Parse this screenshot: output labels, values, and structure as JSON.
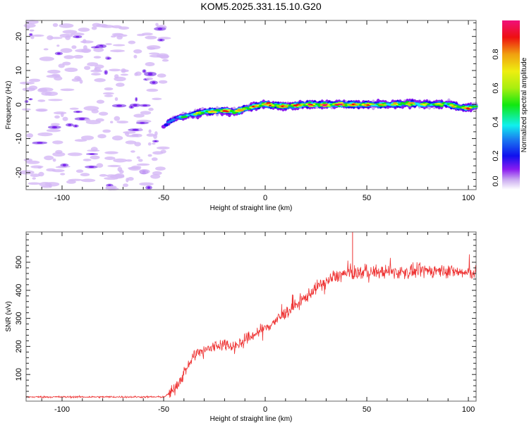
{
  "title": "KOM5.2025.331.15.10.G20",
  "chart_data": [
    {
      "type": "heatmap",
      "name": "spectrogram",
      "xlabel": "Height of straight line (km)",
      "ylabel": "Frequency (Hz)",
      "xlim": [
        -117.7,
        103.8
      ],
      "ylim": [
        -25,
        24.7
      ],
      "xticks": [
        -100,
        -50,
        0,
        50,
        100
      ],
      "xtick_labels": [
        "-100",
        "-50",
        "0",
        "50",
        "100"
      ],
      "yticks": [
        -20,
        -10,
        0,
        10,
        20
      ],
      "ytick_labels": [
        "-20",
        "-10",
        "0",
        "10",
        "20"
      ],
      "noise_region_x": [
        -117.7,
        -49
      ],
      "trace": {
        "description": "Doppler frequency trace vs height",
        "points": [
          {
            "x": -50,
            "y": -6.5
          },
          {
            "x": -47,
            "y": -5.0
          },
          {
            "x": -44,
            "y": -4.0
          },
          {
            "x": -40,
            "y": -3.5
          },
          {
            "x": -35,
            "y": -2.8
          },
          {
            "x": -30,
            "y": -2.2
          },
          {
            "x": -25,
            "y": -2.0
          },
          {
            "x": -20,
            "y": -1.8
          },
          {
            "x": -15,
            "y": -2.2
          },
          {
            "x": -10,
            "y": -1.2
          },
          {
            "x": -5,
            "y": -0.5
          },
          {
            "x": 0,
            "y": 0.2
          },
          {
            "x": 5,
            "y": -0.3
          },
          {
            "x": 10,
            "y": -0.5
          },
          {
            "x": 20,
            "y": 0.0
          },
          {
            "x": 30,
            "y": 0.0
          },
          {
            "x": 40,
            "y": 0.0
          },
          {
            "x": 50,
            "y": 0.0
          },
          {
            "x": 60,
            "y": 0.0
          },
          {
            "x": 70,
            "y": 0.3
          },
          {
            "x": 80,
            "y": 0.0
          },
          {
            "x": 90,
            "y": 0.2
          },
          {
            "x": 95,
            "y": -0.8
          },
          {
            "x": 100,
            "y": -1.0
          },
          {
            "x": 103.8,
            "y": -0.5
          }
        ],
        "amplitude_profile": [
          {
            "x": -50,
            "a": 0.2
          },
          {
            "x": -40,
            "a": 0.45
          },
          {
            "x": -30,
            "a": 0.7
          },
          {
            "x": -20,
            "a": 0.85
          },
          {
            "x": -10,
            "a": 0.8
          },
          {
            "x": 0,
            "a": 0.9
          },
          {
            "x": 10,
            "a": 0.85
          },
          {
            "x": 20,
            "a": 0.9
          },
          {
            "x": 30,
            "a": 0.95
          },
          {
            "x": 40,
            "a": 0.95
          },
          {
            "x": 50,
            "a": 0.85
          },
          {
            "x": 60,
            "a": 0.7
          },
          {
            "x": 70,
            "a": 0.75
          },
          {
            "x": 80,
            "a": 0.65
          },
          {
            "x": 90,
            "a": 0.7
          },
          {
            "x": 100,
            "a": 0.8
          }
        ]
      },
      "colorbar": {
        "label": "Normalized spectral amplitude",
        "range": [
          0,
          1
        ],
        "ticks": [
          0.0,
          0.2,
          0.4,
          0.6,
          0.8
        ],
        "tick_labels": [
          "0.0",
          "0.2",
          "0.4",
          "0.6",
          "0.8"
        ],
        "colormap": "rainbow (white-violet-blue-cyan-green-yellow-red-magenta)"
      }
    },
    {
      "type": "line",
      "name": "snr",
      "xlabel": "Height of straight line (km)",
      "ylabel": "SNR (v/v)",
      "xlim": [
        -117.7,
        103.8
      ],
      "ylim": [
        5,
        608
      ],
      "xticks": [
        -100,
        -50,
        0,
        50,
        100
      ],
      "xtick_labels": [
        "-100",
        "-50",
        "0",
        "50",
        "100"
      ],
      "yticks": [
        100,
        200,
        300,
        400,
        500
      ],
      "ytick_labels": [
        "100",
        "200",
        "300",
        "400",
        "500"
      ],
      "series": [
        {
          "name": "SNR",
          "color": "#ee3333",
          "envelope": [
            {
              "x": -117.7,
              "y": 20
            },
            {
              "x": -100,
              "y": 20
            },
            {
              "x": -80,
              "y": 20
            },
            {
              "x": -60,
              "y": 20
            },
            {
              "x": -50,
              "y": 20
            },
            {
              "x": -46,
              "y": 35
            },
            {
              "x": -42,
              "y": 80
            },
            {
              "x": -38,
              "y": 130
            },
            {
              "x": -35,
              "y": 170
            },
            {
              "x": -30,
              "y": 185
            },
            {
              "x": -25,
              "y": 200
            },
            {
              "x": -20,
              "y": 210
            },
            {
              "x": -15,
              "y": 200
            },
            {
              "x": -10,
              "y": 220
            },
            {
              "x": -5,
              "y": 245
            },
            {
              "x": 0,
              "y": 265
            },
            {
              "x": 5,
              "y": 290
            },
            {
              "x": 10,
              "y": 320
            },
            {
              "x": 15,
              "y": 345
            },
            {
              "x": 20,
              "y": 375
            },
            {
              "x": 25,
              "y": 410
            },
            {
              "x": 30,
              "y": 430
            },
            {
              "x": 35,
              "y": 450
            },
            {
              "x": 40,
              "y": 460
            },
            {
              "x": 50,
              "y": 465
            },
            {
              "x": 60,
              "y": 465
            },
            {
              "x": 70,
              "y": 465
            },
            {
              "x": 80,
              "y": 470
            },
            {
              "x": 90,
              "y": 470
            },
            {
              "x": 100,
              "y": 460
            },
            {
              "x": 103.8,
              "y": 465
            }
          ],
          "peak": {
            "x": 43,
            "y": 608
          }
        }
      ]
    }
  ]
}
